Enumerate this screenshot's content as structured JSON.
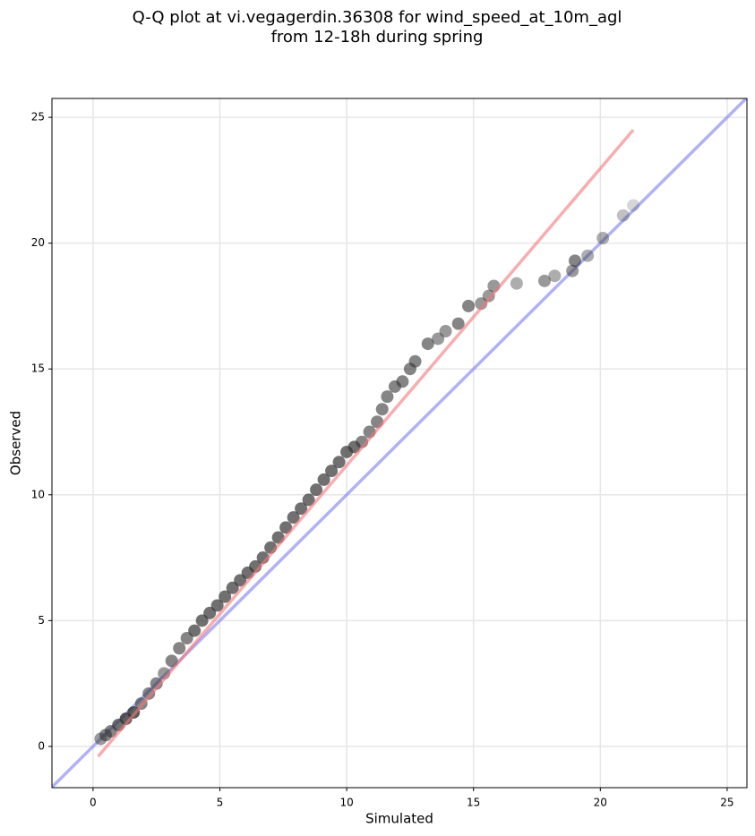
{
  "chart_data": {
    "type": "scatter",
    "title": [
      "Q-Q plot at vi.vegagerdin.36308 for wind_speed_at_10m_agl",
      "from 12-18h during spring"
    ],
    "xlabel": "Simulated",
    "ylabel": "Observed",
    "xlim": [
      -1.62,
      25.78
    ],
    "ylim": [
      -1.64,
      25.75
    ],
    "xticks": [
      0,
      5,
      10,
      15,
      20,
      25
    ],
    "yticks": [
      0,
      5,
      10,
      15,
      20,
      25
    ],
    "grid": true,
    "points": {
      "color": "#333333",
      "x": [
        0.3,
        0.5,
        0.7,
        1.0,
        1.3,
        1.6,
        1.9,
        2.2,
        2.5,
        2.8,
        3.1,
        3.4,
        3.7,
        4.0,
        4.3,
        4.6,
        4.9,
        5.2,
        5.5,
        5.8,
        6.1,
        6.4,
        6.7,
        7.0,
        7.3,
        7.6,
        7.9,
        8.2,
        8.5,
        8.8,
        9.1,
        9.4,
        9.7,
        10.0,
        10.3,
        10.6,
        10.9,
        11.2,
        11.4,
        11.6,
        11.9,
        12.2,
        12.5,
        12.7,
        13.2,
        13.6,
        13.9,
        14.4,
        14.8,
        15.3,
        15.6,
        15.8,
        16.7,
        17.8,
        18.2,
        18.9,
        19.0,
        19.5,
        20.1,
        20.9,
        21.3
      ],
      "y": [
        0.3,
        0.45,
        0.6,
        0.85,
        1.1,
        1.35,
        1.7,
        2.1,
        2.5,
        2.9,
        3.4,
        3.9,
        4.3,
        4.6,
        5.0,
        5.3,
        5.6,
        5.95,
        6.3,
        6.6,
        6.9,
        7.15,
        7.5,
        7.9,
        8.3,
        8.7,
        9.1,
        9.45,
        9.8,
        10.2,
        10.6,
        10.95,
        11.3,
        11.7,
        11.9,
        12.1,
        12.5,
        12.9,
        13.4,
        13.9,
        14.3,
        14.5,
        15.0,
        15.3,
        16.0,
        16.2,
        16.5,
        16.8,
        17.5,
        17.6,
        17.9,
        18.3,
        18.4,
        18.5,
        18.7,
        18.9,
        19.3,
        19.5,
        20.2,
        21.1,
        21.5
      ]
    },
    "fit_line": {
      "color": "#f4777a",
      "x": [
        0.2,
        21.3
      ],
      "y": [
        -0.4,
        24.5
      ]
    },
    "identity_line": {
      "color": "#7b7ff0",
      "x": [
        -1.62,
        25.78
      ],
      "y": [
        -1.62,
        25.78
      ]
    }
  }
}
